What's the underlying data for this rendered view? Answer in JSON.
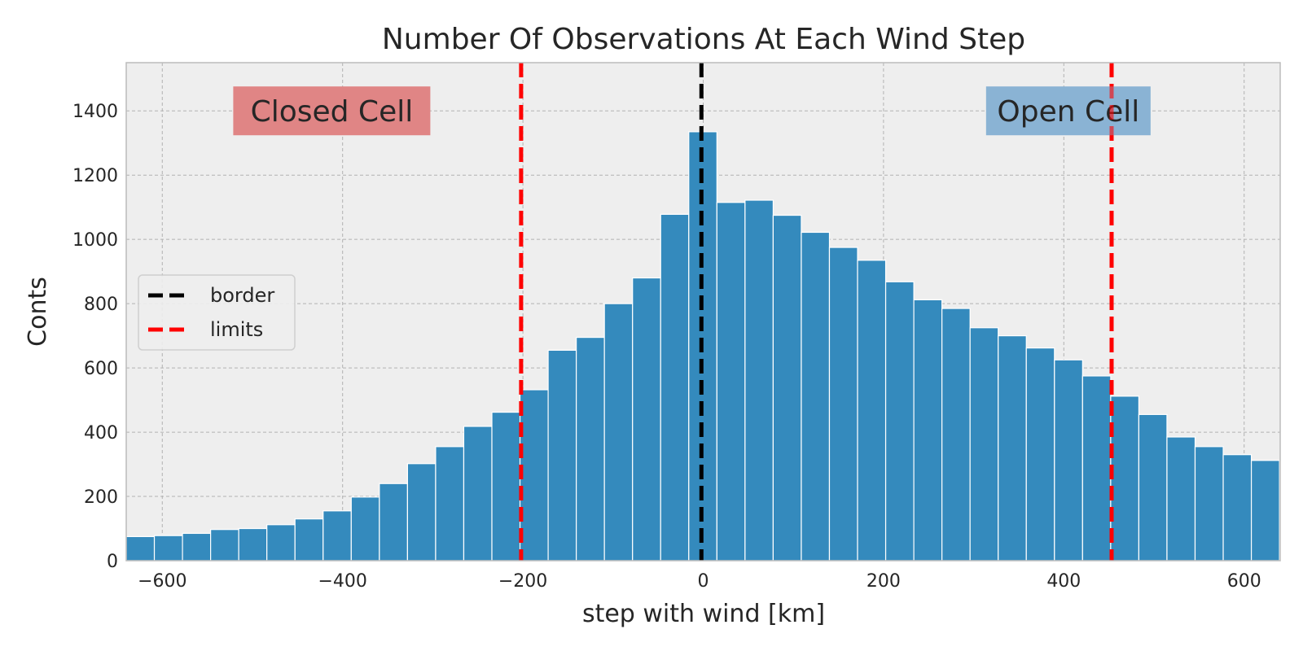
{
  "chart_data": {
    "type": "bar",
    "title": "Number Of Observations At Each Wind Step",
    "xlabel": "step with wind [km]",
    "ylabel": "Conts",
    "xlim": [
      -640,
      640
    ],
    "ylim": [
      0,
      1550
    ],
    "xticks": [
      -600,
      -400,
      -200,
      0,
      200,
      400,
      600
    ],
    "xtick_labels": [
      "−600",
      "−400",
      "−200",
      "0",
      "200",
      "400",
      "600"
    ],
    "yticks": [
      0,
      200,
      400,
      600,
      800,
      1000,
      1200,
      1400
    ],
    "yticks_labels": [
      "0",
      "200",
      "400",
      "600",
      "800",
      "1000",
      "1200",
      "1400"
    ],
    "grid": true,
    "bin_start": -640,
    "bin_width": 31.2,
    "values": [
      75,
      78,
      85,
      97,
      100,
      112,
      130,
      155,
      198,
      240,
      302,
      355,
      418,
      462,
      532,
      655,
      695,
      800,
      880,
      1078,
      1335,
      1115,
      1122,
      1075,
      1022,
      975,
      935,
      868,
      812,
      785,
      725,
      700,
      662,
      625,
      575,
      512,
      455,
      385,
      355,
      330,
      312
    ],
    "bar_color": "#348abd",
    "vlines": [
      {
        "name": "border",
        "x": -2,
        "color": "#000000"
      },
      {
        "name": "limits",
        "x": -202,
        "color": "#ff0000"
      },
      {
        "name": "limits",
        "x": 453,
        "color": "#ff0000"
      }
    ],
    "legend": {
      "placement": "center-left",
      "entries": [
        {
          "label": "border",
          "color": "#000000"
        },
        {
          "label": "limits",
          "color": "#ff0000"
        }
      ]
    },
    "annotations": [
      {
        "text": "Closed Cell",
        "x": -412,
        "y": 1400,
        "box_color": "#e08585"
      },
      {
        "text": "Open Cell",
        "x": 405,
        "y": 1400,
        "box_color": "#8ab3d4"
      }
    ]
  }
}
